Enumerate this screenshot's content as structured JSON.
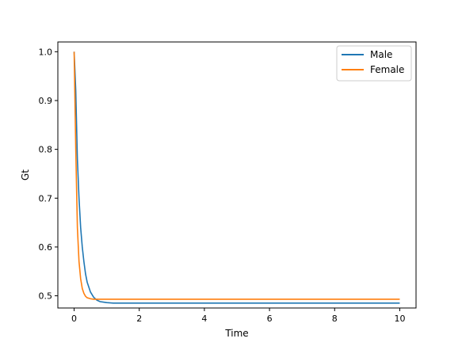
{
  "chart_data": {
    "type": "line",
    "title": "",
    "xlabel": "Time",
    "ylabel": "Gt",
    "xlim": [
      -0.5,
      10.5
    ],
    "ylim": [
      0.475,
      1.02
    ],
    "xticks": [
      0,
      2,
      4,
      6,
      8,
      10
    ],
    "yticks": [
      0.5,
      0.6,
      0.7,
      0.8,
      0.9,
      1.0
    ],
    "xtick_labels": [
      "0",
      "2",
      "4",
      "6",
      "8",
      "10"
    ],
    "ytick_labels": [
      "0.5",
      "0.6",
      "0.7",
      "0.8",
      "0.9",
      "1.0"
    ],
    "grid": false,
    "legend": "top-right",
    "series": [
      {
        "name": "Male",
        "color": "#1f77b4",
        "x": [
          0,
          0.05,
          0.1,
          0.15,
          0.2,
          0.25,
          0.3,
          0.35,
          0.4,
          0.5,
          0.6,
          0.7,
          0.8,
          1.0,
          1.2,
          1.5,
          2,
          3,
          4,
          5,
          6,
          7,
          8,
          9,
          10
        ],
        "y": [
          1.0,
          0.92,
          0.78,
          0.7,
          0.64,
          0.6,
          0.57,
          0.545,
          0.528,
          0.508,
          0.497,
          0.491,
          0.488,
          0.486,
          0.485,
          0.485,
          0.485,
          0.485,
          0.485,
          0.485,
          0.485,
          0.485,
          0.485,
          0.485,
          0.485
        ]
      },
      {
        "name": "Female",
        "color": "#ff7f0e",
        "x": [
          0,
          0.05,
          0.1,
          0.15,
          0.2,
          0.25,
          0.3,
          0.35,
          0.4,
          0.5,
          0.6,
          0.7,
          0.8,
          1.0,
          1.5,
          2,
          3,
          4,
          5,
          6,
          7,
          8,
          9,
          10
        ],
        "y": [
          1.0,
          0.8,
          0.64,
          0.57,
          0.535,
          0.515,
          0.505,
          0.499,
          0.496,
          0.494,
          0.493,
          0.493,
          0.493,
          0.493,
          0.493,
          0.493,
          0.493,
          0.493,
          0.493,
          0.493,
          0.493,
          0.493,
          0.493,
          0.493
        ]
      }
    ]
  }
}
